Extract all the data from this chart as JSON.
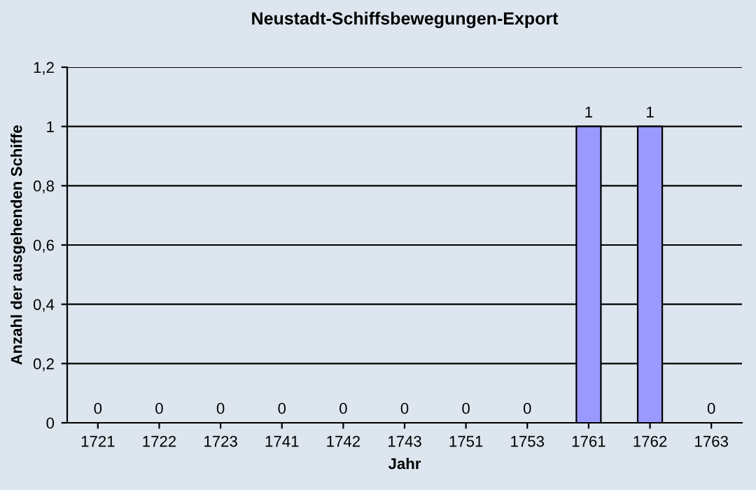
{
  "chart_data": {
    "type": "bar",
    "title": "Neustadt-Schiffsbewegungen-Export",
    "xlabel": "Jahr",
    "ylabel": "Anzahl der ausgehenden Schiffe",
    "categories": [
      "1721",
      "1722",
      "1723",
      "1741",
      "1742",
      "1743",
      "1751",
      "1753",
      "1761",
      "1762",
      "1763"
    ],
    "values": [
      0,
      0,
      0,
      0,
      0,
      0,
      0,
      0,
      1,
      1,
      0
    ],
    "color": "#9999ff",
    "ylim": [
      0,
      1.2
    ],
    "yticks": [
      0,
      {
        "value": 0.2,
        "label": "0,2"
      },
      {
        "value": 0.4,
        "label": "0,4"
      },
      {
        "value": 0.6,
        "label": "0,6"
      },
      {
        "value": 0.8,
        "label": "0,8"
      },
      1,
      {
        "value": 1.2,
        "label": "1,2"
      }
    ],
    "grid": "y",
    "data_labels": true,
    "legend": false
  }
}
